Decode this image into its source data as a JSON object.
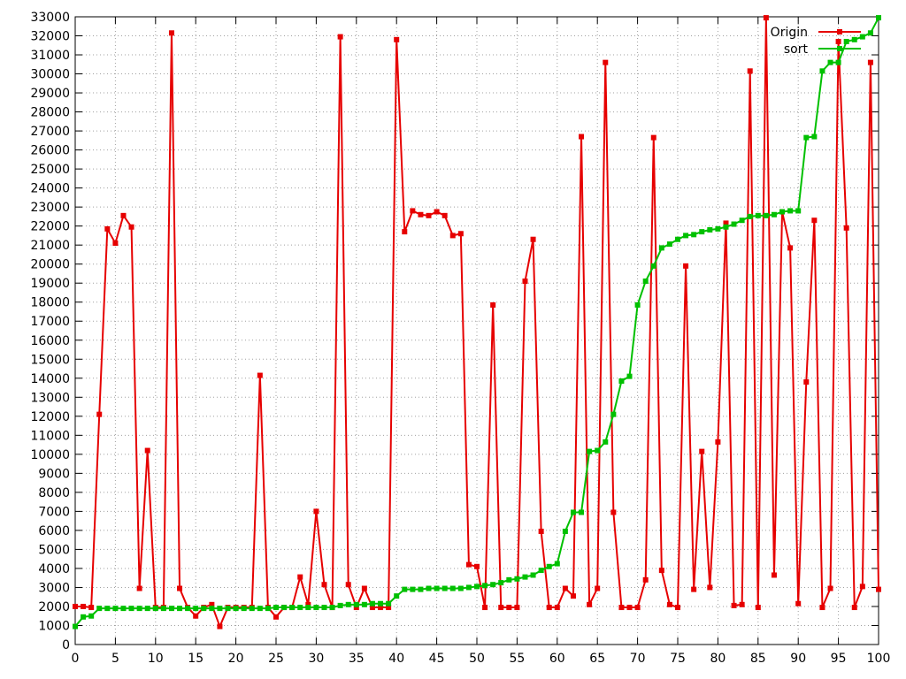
{
  "chart_data": {
    "type": "line",
    "xlim": [
      0,
      100
    ],
    "ylim": [
      0,
      33000
    ],
    "x_ticks": [
      0,
      5,
      10,
      15,
      20,
      25,
      30,
      35,
      40,
      45,
      50,
      55,
      60,
      65,
      70,
      75,
      80,
      85,
      90,
      95,
      100
    ],
    "y_ticks": [
      0,
      1000,
      2000,
      3000,
      4000,
      5000,
      6000,
      7000,
      8000,
      9000,
      10000,
      11000,
      12000,
      13000,
      14000,
      15000,
      16000,
      17000,
      18000,
      19000,
      20000,
      21000,
      22000,
      23000,
      24000,
      25000,
      26000,
      27000,
      28000,
      29000,
      30000,
      31000,
      32000,
      33000
    ],
    "grid": true,
    "legend": "top-right",
    "series": [
      {
        "name": "Origin",
        "color": "#e60000",
        "x": [
          0,
          1,
          2,
          3,
          4,
          5,
          6,
          7,
          8,
          9,
          10,
          11,
          12,
          13,
          14,
          15,
          16,
          17,
          18,
          19,
          20,
          21,
          22,
          23,
          24,
          25,
          26,
          27,
          28,
          29,
          30,
          31,
          32,
          33,
          34,
          35,
          36,
          37,
          38,
          39,
          40,
          41,
          42,
          43,
          44,
          45,
          46,
          47,
          48,
          49,
          50,
          51,
          52,
          53,
          54,
          55,
          56,
          57,
          58,
          59,
          60,
          61,
          62,
          63,
          64,
          65,
          66,
          67,
          68,
          69,
          70,
          71,
          72,
          73,
          74,
          75,
          76,
          77,
          78,
          79,
          80,
          81,
          82,
          83,
          84,
          85,
          86,
          87,
          88,
          89,
          90,
          91,
          92,
          93,
          94,
          95,
          96,
          97,
          98,
          99,
          100
        ],
        "y": [
          2000,
          2000,
          1950,
          12100,
          21850,
          21100,
          22550,
          21950,
          2950,
          10200,
          1950,
          1950,
          32150,
          2950,
          1950,
          1500,
          1950,
          2100,
          950,
          1950,
          1950,
          1950,
          1950,
          14150,
          1950,
          1450,
          1950,
          1950,
          3550,
          2100,
          7000,
          3150,
          1950,
          31950,
          3150,
          1950,
          2950,
          1950,
          1950,
          1950,
          31800,
          21700,
          22800,
          22600,
          22550,
          22750,
          22550,
          21500,
          21600,
          4200,
          4100,
          1950,
          17850,
          1950,
          1950,
          1950,
          19100,
          21300,
          5950,
          1950,
          1950,
          2950,
          2550,
          26700,
          2100,
          2950,
          30600,
          6950,
          1950,
          1950,
          1950,
          3400,
          26650,
          3900,
          2100,
          1950,
          19900,
          2900,
          10150,
          3000,
          10650,
          22150,
          2050,
          2100,
          30150,
          1950,
          32950,
          3650,
          22750,
          20850,
          2150,
          13800,
          22300,
          1950,
          2950,
          31700,
          21900,
          1950,
          3050,
          30600,
          2900
        ]
      },
      {
        "name": "sort",
        "color": "#00c000",
        "x": [
          0,
          1,
          2,
          3,
          4,
          5,
          6,
          7,
          8,
          9,
          10,
          11,
          12,
          13,
          14,
          15,
          16,
          17,
          18,
          19,
          20,
          21,
          22,
          23,
          24,
          25,
          26,
          27,
          28,
          29,
          30,
          31,
          32,
          33,
          34,
          35,
          36,
          37,
          38,
          39,
          40,
          41,
          42,
          43,
          44,
          45,
          46,
          47,
          48,
          49,
          50,
          51,
          52,
          53,
          54,
          55,
          56,
          57,
          58,
          59,
          60,
          61,
          62,
          63,
          64,
          65,
          66,
          67,
          68,
          69,
          70,
          71,
          72,
          73,
          74,
          75,
          76,
          77,
          78,
          79,
          80,
          81,
          82,
          83,
          84,
          85,
          86,
          87,
          88,
          89,
          90,
          91,
          92,
          93,
          94,
          95,
          96,
          97,
          98,
          99,
          100
        ],
        "y": [
          950,
          1450,
          1500,
          1900,
          1900,
          1900,
          1900,
          1900,
          1900,
          1900,
          1900,
          1900,
          1900,
          1900,
          1900,
          1900,
          1900,
          1900,
          1900,
          1900,
          1900,
          1900,
          1900,
          1900,
          1900,
          1950,
          1950,
          1950,
          1950,
          1950,
          1950,
          1950,
          1950,
          2050,
          2100,
          2100,
          2100,
          2150,
          2150,
          2150,
          2550,
          2900,
          2900,
          2900,
          2950,
          2950,
          2950,
          2950,
          2950,
          3000,
          3050,
          3100,
          3150,
          3250,
          3400,
          3450,
          3550,
          3650,
          3900,
          4100,
          4250,
          5950,
          6950,
          6950,
          10150,
          10200,
          10650,
          12100,
          13850,
          14100,
          17850,
          19100,
          19900,
          20850,
          21050,
          21300,
          21500,
          21550,
          21700,
          21800,
          21850,
          21950,
          22100,
          22300,
          22500,
          22550,
          22550,
          22600,
          22750,
          22800,
          22800,
          26650,
          26700,
          30150,
          30600,
          30600,
          31700,
          31800,
          31950,
          32150,
          32950
        ]
      }
    ]
  }
}
